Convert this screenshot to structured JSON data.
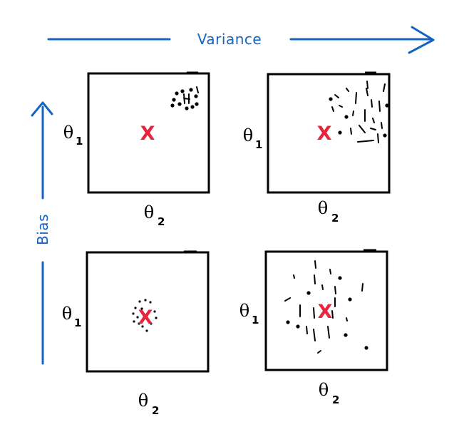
{
  "axes": {
    "variance_label": "Variance",
    "bias_label": "Bias",
    "color": "#1565c0"
  },
  "target": {
    "mark": "X",
    "color": "#e8243c"
  },
  "theta": {
    "symbol": "θ",
    "x_subscript": "2",
    "y_subscript": "1"
  },
  "panels": [
    {
      "id": "high-bias-low-variance",
      "bias": "high",
      "variance": "low"
    },
    {
      "id": "high-bias-high-variance",
      "bias": "high",
      "variance": "high"
    },
    {
      "id": "low-bias-low-variance",
      "bias": "low",
      "variance": "low"
    },
    {
      "id": "low-bias-high-variance",
      "bias": "low",
      "variance": "high"
    }
  ]
}
